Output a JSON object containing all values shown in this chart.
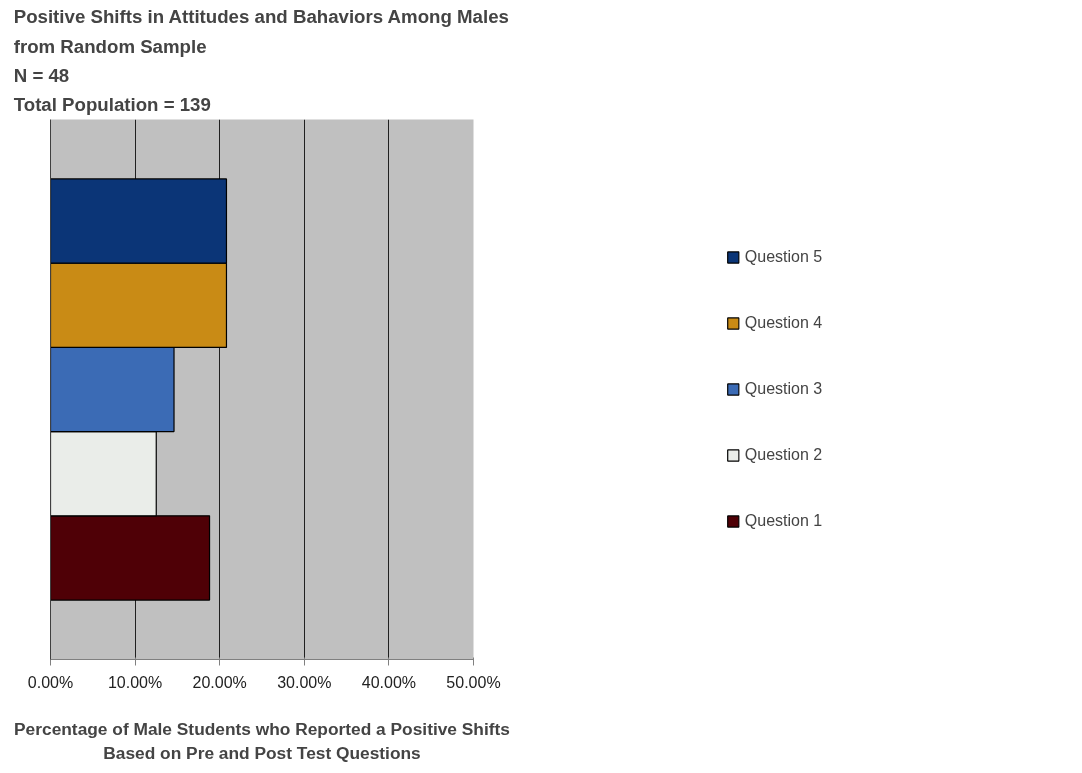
{
  "chart_data": {
    "type": "bar",
    "orientation": "horizontal",
    "title": "Positive Shifts in Attitudes and Bahaviors Among Males\nfrom Random Sample\nN = 48\nTotal Population = 139",
    "xlabel": "Percentage of Male Students who Reported a Positive Shifts\nBased on Pre and Post Test Questions",
    "categories": [
      null
    ],
    "series": [
      {
        "name": "Question 1",
        "color": "#4f0006",
        "values": [
          18.8
        ]
      },
      {
        "name": "Question 2",
        "color": "#eaede9",
        "values": [
          12.5
        ]
      },
      {
        "name": "Question 3",
        "color": "#3b6bb5",
        "values": [
          14.6
        ]
      },
      {
        "name": "Question 4",
        "color": "#c98b15",
        "values": [
          20.8
        ]
      },
      {
        "name": "Question 5",
        "color": "#0b3577",
        "values": [
          20.8
        ]
      }
    ],
    "xlim": [
      0,
      50
    ],
    "xticks": [
      {
        "value": 0,
        "label": "0.00%"
      },
      {
        "value": 10,
        "label": "10.00%"
      },
      {
        "value": 20,
        "label": "20.00%"
      },
      {
        "value": 30,
        "label": "30.00%"
      },
      {
        "value": 40,
        "label": "40.00%"
      },
      {
        "value": 50,
        "label": "50.00%"
      }
    ],
    "grid": "x",
    "legend": "right",
    "tick_labels": "x"
  }
}
